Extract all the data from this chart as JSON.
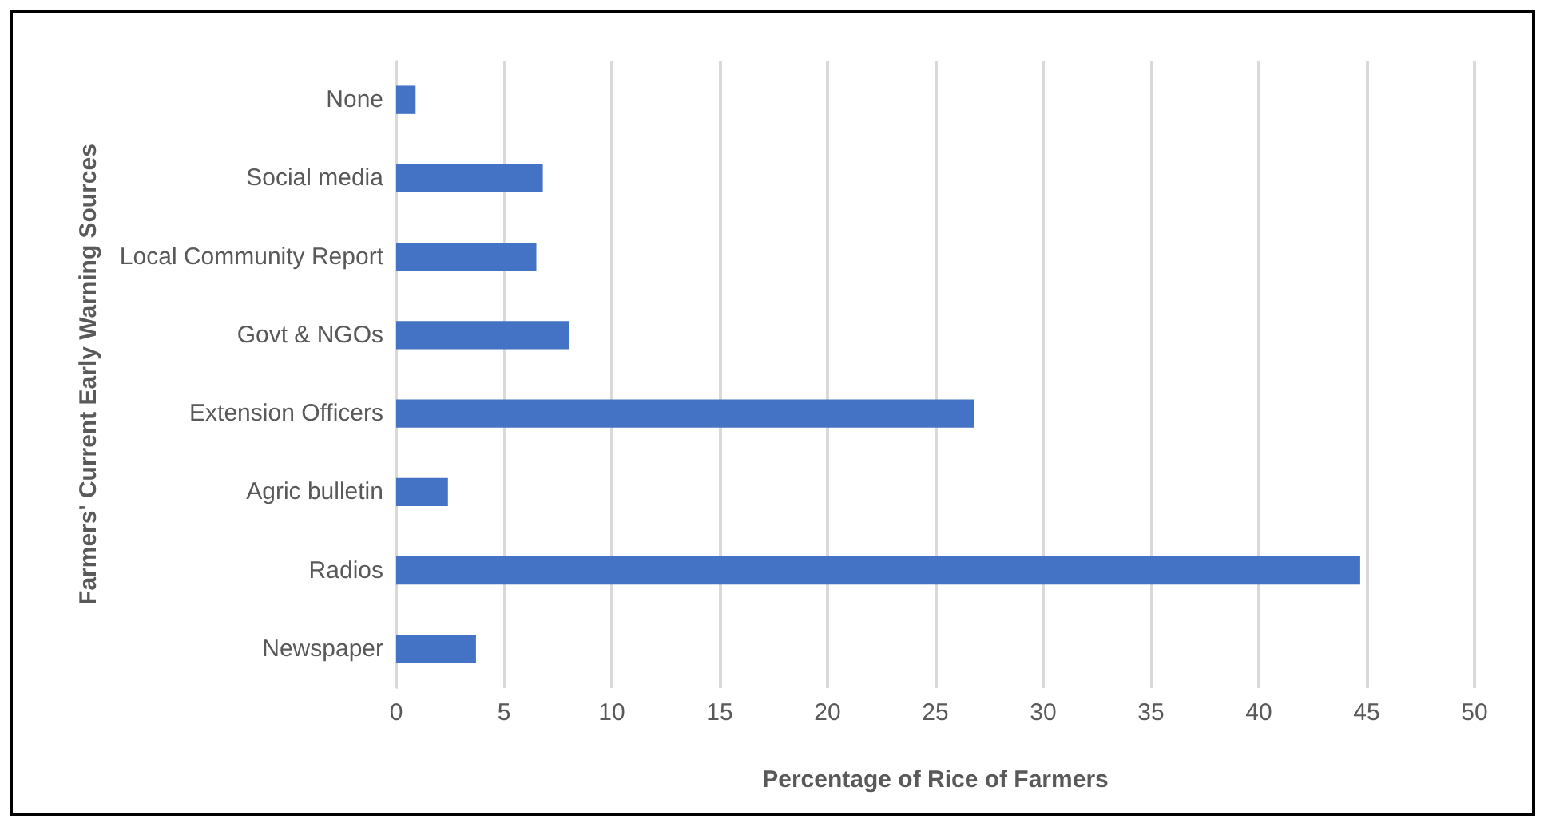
{
  "chart_data": {
    "type": "bar",
    "orientation": "horizontal",
    "xlabel": "Percentage of Rice of Farmers",
    "ylabel": "Farmers' Current Early Warning Sources",
    "categories": [
      "None",
      "Social media",
      "Local Community Report",
      "Govt & NGOs",
      "Extension Officers",
      "Agric bulletin",
      "Radios",
      "Newspaper"
    ],
    "values": [
      0.9,
      6.8,
      6.5,
      8.0,
      26.8,
      2.4,
      44.7,
      3.7
    ],
    "color": "#4472c4",
    "xlim": [
      0,
      50
    ],
    "xticks": [
      0,
      5,
      10,
      15,
      20,
      25,
      30,
      35,
      40,
      45,
      50
    ],
    "grid": "x"
  }
}
